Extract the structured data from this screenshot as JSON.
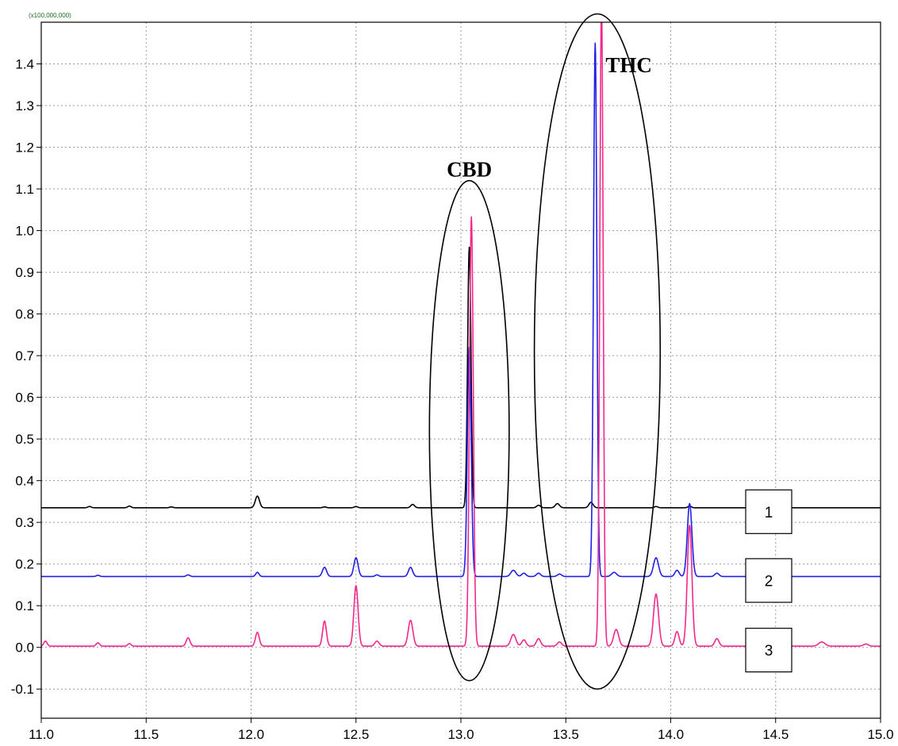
{
  "chart_data": {
    "type": "line",
    "title": "",
    "xlabel": "",
    "ylabel": "",
    "y_scale_label": "(x100,000,000)",
    "xlim": [
      11.0,
      15.0
    ],
    "ylim": [
      -0.17,
      1.5
    ],
    "grid": true,
    "x_ticks": [
      {
        "value": 11.0,
        "label": "11.0"
      },
      {
        "value": 11.5,
        "label": "11.5"
      },
      {
        "value": 12.0,
        "label": "12.0"
      },
      {
        "value": 12.5,
        "label": "12.5"
      },
      {
        "value": 13.0,
        "label": "13.0"
      },
      {
        "value": 13.5,
        "label": "13.5"
      },
      {
        "value": 14.0,
        "label": "14.0"
      },
      {
        "value": 14.5,
        "label": "14.5"
      },
      {
        "value": 15.0,
        "label": "15.0"
      }
    ],
    "y_ticks": [
      {
        "value": -0.1,
        "label": "-0.1"
      },
      {
        "value": 0.0,
        "label": "0.0"
      },
      {
        "value": 0.1,
        "label": "0.1"
      },
      {
        "value": 0.2,
        "label": "0.2"
      },
      {
        "value": 0.3,
        "label": "0.3"
      },
      {
        "value": 0.4,
        "label": "0.4"
      },
      {
        "value": 0.5,
        "label": "0.5"
      },
      {
        "value": 0.6,
        "label": "0.6"
      },
      {
        "value": 0.7,
        "label": "0.7"
      },
      {
        "value": 0.8,
        "label": "0.8"
      },
      {
        "value": 0.9,
        "label": "0.9"
      },
      {
        "value": 1.0,
        "label": "1.0"
      },
      {
        "value": 1.1,
        "label": "1.1"
      },
      {
        "value": 1.2,
        "label": "1.2"
      },
      {
        "value": 1.3,
        "label": "1.3"
      },
      {
        "value": 1.4,
        "label": "1.4"
      }
    ],
    "series": [
      {
        "label": "1",
        "color": "#000000",
        "baseline": 0.335,
        "peaks": [
          [
            11.23,
            0.003,
            0.008
          ],
          [
            11.42,
            0.004,
            0.008
          ],
          [
            11.62,
            0.002,
            0.008
          ],
          [
            12.03,
            0.028,
            0.01
          ],
          [
            12.35,
            0.002,
            0.008
          ],
          [
            12.5,
            0.003,
            0.008
          ],
          [
            12.77,
            0.008,
            0.009
          ],
          [
            13.04,
            0.625,
            0.008
          ],
          [
            13.37,
            0.006,
            0.009
          ],
          [
            13.46,
            0.01,
            0.01
          ],
          [
            13.62,
            0.013,
            0.01
          ],
          [
            13.93,
            0.003,
            0.008
          ],
          [
            14.09,
            0.004,
            0.008
          ]
        ]
      },
      {
        "label": "2",
        "color": "#1f1fe6",
        "baseline": 0.17,
        "peaks": [
          [
            11.27,
            0.003,
            0.008
          ],
          [
            11.7,
            0.004,
            0.008
          ],
          [
            12.03,
            0.01,
            0.008
          ],
          [
            12.35,
            0.022,
            0.01
          ],
          [
            12.5,
            0.045,
            0.01
          ],
          [
            12.6,
            0.004,
            0.008
          ],
          [
            12.76,
            0.022,
            0.01
          ],
          [
            13.04,
            0.55,
            0.009
          ],
          [
            13.25,
            0.015,
            0.012
          ],
          [
            13.3,
            0.008,
            0.01
          ],
          [
            13.37,
            0.008,
            0.01
          ],
          [
            13.47,
            0.006,
            0.01
          ],
          [
            13.64,
            1.28,
            0.008
          ],
          [
            13.73,
            0.01,
            0.012
          ],
          [
            13.93,
            0.045,
            0.012
          ],
          [
            14.03,
            0.015,
            0.01
          ],
          [
            14.09,
            0.175,
            0.011
          ],
          [
            14.22,
            0.008,
            0.01
          ]
        ]
      },
      {
        "label": "3",
        "color": "#f2288c",
        "baseline": 0.003,
        "peaks": [
          [
            11.02,
            0.012,
            0.008
          ],
          [
            11.27,
            0.008,
            0.008
          ],
          [
            11.42,
            0.006,
            0.008
          ],
          [
            11.7,
            0.02,
            0.009
          ],
          [
            12.03,
            0.033,
            0.009
          ],
          [
            12.35,
            0.06,
            0.009
          ],
          [
            12.5,
            0.145,
            0.01
          ],
          [
            12.6,
            0.012,
            0.01
          ],
          [
            12.76,
            0.062,
            0.011
          ],
          [
            13.05,
            1.03,
            0.009
          ],
          [
            13.25,
            0.028,
            0.012
          ],
          [
            13.3,
            0.015,
            0.01
          ],
          [
            13.37,
            0.018,
            0.01
          ],
          [
            13.47,
            0.01,
            0.01
          ],
          [
            13.67,
            1.55,
            0.008
          ],
          [
            13.74,
            0.04,
            0.012
          ],
          [
            13.93,
            0.125,
            0.012
          ],
          [
            14.03,
            0.035,
            0.01
          ],
          [
            14.09,
            0.29,
            0.011
          ],
          [
            14.22,
            0.018,
            0.01
          ],
          [
            14.72,
            0.01,
            0.015
          ],
          [
            14.93,
            0.005,
            0.012
          ]
        ]
      }
    ],
    "annotations": [
      {
        "label": "CBD",
        "x": 13.04,
        "y": 1.13
      },
      {
        "label": "THC",
        "x": 13.8,
        "y": 1.38
      }
    ],
    "ellipses": [
      {
        "name": "cbd-ellipse",
        "cx": 13.04,
        "cy": 0.52,
        "rx": 0.19,
        "ry": 0.6
      },
      {
        "name": "thc-ellipse",
        "cx": 13.65,
        "cy": 0.71,
        "rx": 0.3,
        "ry": 0.81
      }
    ],
    "legend_boxes": [
      "1",
      "2",
      "3"
    ]
  }
}
